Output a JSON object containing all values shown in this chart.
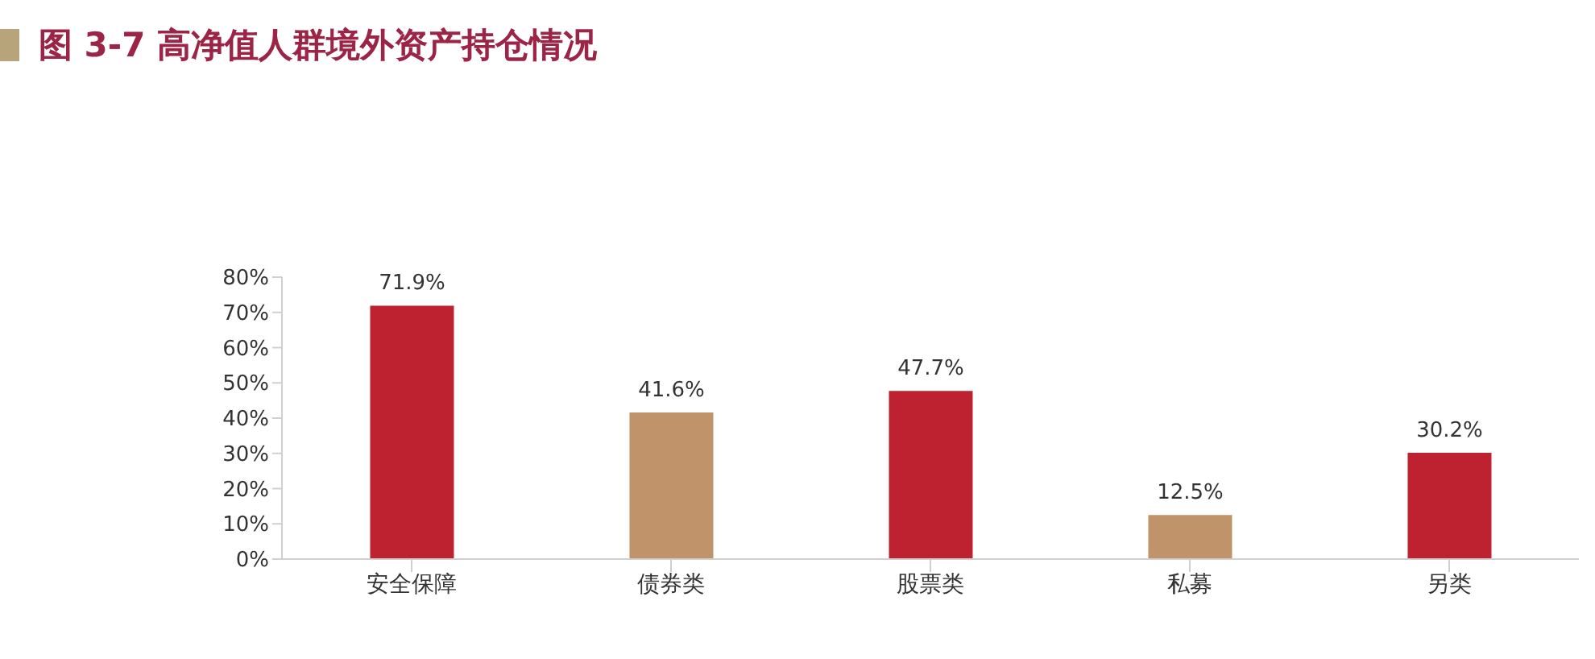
{
  "chart_data": {
    "type": "bar",
    "title": "图 3-7 高净值人群境外资产持仓情况",
    "categories": [
      "安全保障",
      "债券类",
      "股票类",
      "私募",
      "另类"
    ],
    "values": [
      71.9,
      41.6,
      47.7,
      12.5,
      30.2
    ],
    "colors": [
      "#be2230",
      "#c0936a",
      "#be2230",
      "#c0936a",
      "#be2230"
    ],
    "value_labels": [
      "71.9%",
      "41.6%",
      "47.7%",
      "12.5%",
      "30.2%"
    ],
    "ylim": [
      0,
      80
    ],
    "yticks": [
      {
        "value": 0,
        "label": "0%"
      },
      {
        "value": 10,
        "label": "10%"
      },
      {
        "value": 20,
        "label": "20%"
      },
      {
        "value": 30,
        "label": "30%"
      },
      {
        "value": 40,
        "label": "40%"
      },
      {
        "value": 50,
        "label": "50%"
      },
      {
        "value": 60,
        "label": "60%"
      },
      {
        "value": 70,
        "label": "70%"
      },
      {
        "value": 80,
        "label": "80%"
      }
    ],
    "grid": false,
    "legend": false
  }
}
